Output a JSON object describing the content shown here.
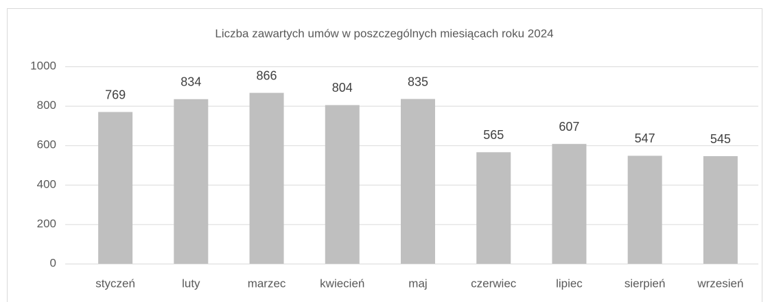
{
  "chart_data": {
    "type": "bar",
    "title": "Liczba zawartych umów w poszczególnych miesiącach roku 2024",
    "categories": [
      "styczeń",
      "luty",
      "marzec",
      "kwiecień",
      "maj",
      "czerwiec",
      "lipiec",
      "sierpień",
      "wrzesień"
    ],
    "values": [
      769,
      834,
      866,
      804,
      835,
      565,
      607,
      547,
      545
    ],
    "color": "#bfbfbf",
    "ylim": [
      0,
      1000
    ],
    "yticks": [
      0,
      200,
      400,
      600,
      800,
      1000
    ],
    "grid": true
  }
}
